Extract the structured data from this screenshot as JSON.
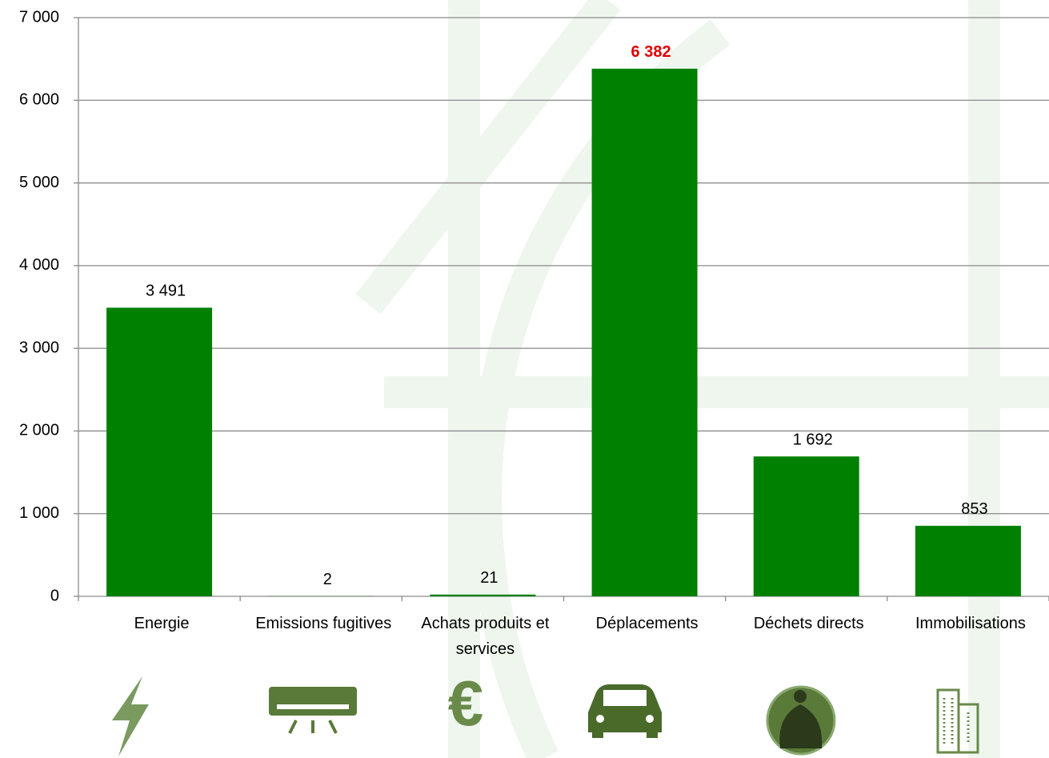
{
  "chart_data": {
    "type": "bar",
    "categories": [
      "Energie",
      "Emissions fugitives",
      "Achats produits et services",
      "Déplacements",
      "Déchets directs",
      "Immobilisations"
    ],
    "values": [
      3491,
      2,
      21,
      6382,
      1692,
      853
    ],
    "value_labels": [
      "3 491",
      "2",
      "21",
      "6 382",
      "1 692",
      "853"
    ],
    "value_label_colors": [
      "#000000",
      "#000000",
      "#000000",
      "#e00000",
      "#000000",
      "#000000"
    ],
    "color": "#008000",
    "ylim": [
      0,
      7000
    ],
    "yticks": [
      {
        "value": 0,
        "label": "0"
      },
      {
        "value": 1000,
        "label": "1 000"
      },
      {
        "value": 2000,
        "label": "2 000"
      },
      {
        "value": 3000,
        "label": "3 000"
      },
      {
        "value": 4000,
        "label": "4 000"
      },
      {
        "value": 5000,
        "label": "5 000"
      },
      {
        "value": 6000,
        "label": "6 000"
      },
      {
        "value": 7000,
        "label": "7 000"
      }
    ],
    "grid": true
  }
}
